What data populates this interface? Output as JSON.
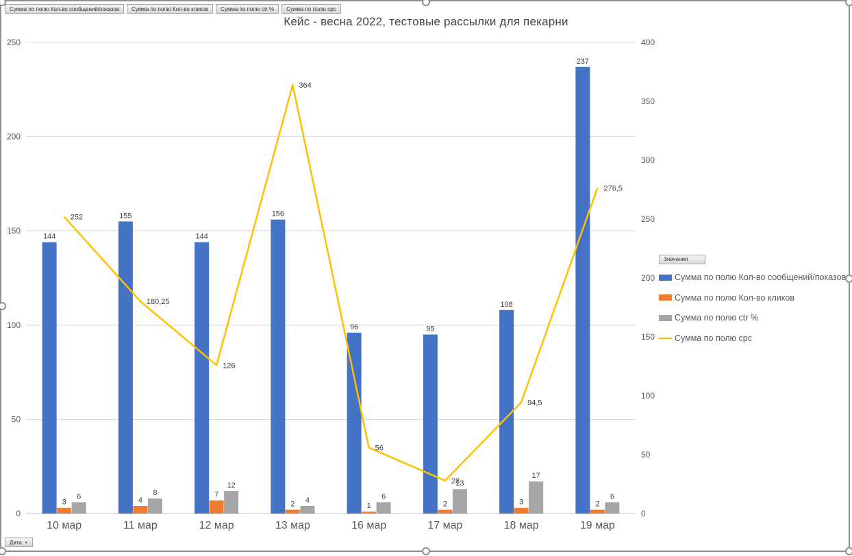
{
  "title": "Кейс - весна 2022, тестовые рассылки для пекарни",
  "pivot_field_buttons": [
    "Сумма по полю Кол-во сообщений/показов",
    "Сумма по полю Кол-во кликов",
    "Сумма по полю ctr %",
    "Сумма по полю срс"
  ],
  "axis_filter_button": {
    "label": "Дата"
  },
  "legend": {
    "header": "Значения",
    "entries": [
      {
        "label": "Сумма по полю Кол-во сообщений/показов",
        "color": "#4472C4",
        "type": "bar"
      },
      {
        "label": "Сумма по полю Кол-во кликов",
        "color": "#ED7D31",
        "type": "bar"
      },
      {
        "label": "Сумма по полю ctr %",
        "color": "#A5A5A5",
        "type": "bar"
      },
      {
        "label": "Сумма по полю срс",
        "color": "#FFC000",
        "type": "line"
      }
    ]
  },
  "chart_data": {
    "type": "combo",
    "categories": [
      "10 мар",
      "11 мар",
      "12 мар",
      "13 мар",
      "16 мар",
      "17 мар",
      "18 мар",
      "19 мар"
    ],
    "series": [
      {
        "name": "Сумма по полю Кол-во сообщений/показов",
        "type": "bar",
        "axis": "left",
        "color": "#4472C4",
        "values": [
          144,
          155,
          144,
          156,
          96,
          95,
          108,
          237
        ]
      },
      {
        "name": "Сумма по полю Кол-во кликов",
        "type": "bar",
        "axis": "left",
        "color": "#ED7D31",
        "values": [
          3,
          4,
          7,
          2,
          1,
          2,
          3,
          2
        ]
      },
      {
        "name": "Сумма по полю ctr %",
        "type": "bar",
        "axis": "left",
        "color": "#A5A5A5",
        "values": [
          6,
          8,
          12,
          4,
          6,
          13,
          17,
          6
        ]
      },
      {
        "name": "Сумма по полю срс",
        "type": "line",
        "axis": "right",
        "color": "#FFC000",
        "values": [
          252,
          180.25,
          126,
          364,
          56,
          28,
          94.5,
          276.5
        ],
        "labels": [
          "252",
          "180,25",
          "126",
          "364",
          "56",
          "28",
          "94,5",
          "276,5"
        ]
      }
    ],
    "left_axis": {
      "min": 0,
      "max": 250,
      "step": 50,
      "ticks": [
        "0",
        "50",
        "100",
        "150",
        "200",
        "250"
      ]
    },
    "right_axis": {
      "min": 0,
      "max": 400,
      "step": 50,
      "ticks": [
        "0",
        "50",
        "100",
        "150",
        "200",
        "250",
        "300",
        "350",
        "400"
      ]
    },
    "grid": true,
    "legend_position": "right",
    "colors": {
      "grid": "#dadada",
      "axis_line": "#c0c0c0",
      "tick_text": "#595959",
      "data_label": "#404040"
    }
  }
}
